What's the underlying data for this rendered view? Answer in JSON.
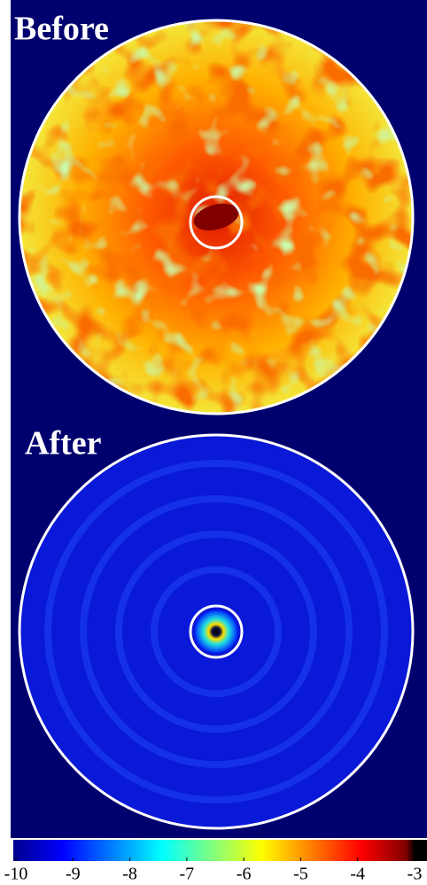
{
  "chart_data": {
    "type": "heatmap",
    "panels": [
      {
        "title": "Before"
      },
      {
        "title": "After"
      }
    ],
    "colorbar": {
      "lim": [
        -10,
        -3
      ],
      "ticks": [
        -10,
        -9,
        -8,
        -7,
        -6,
        -5,
        -4,
        -3
      ]
    }
  }
}
